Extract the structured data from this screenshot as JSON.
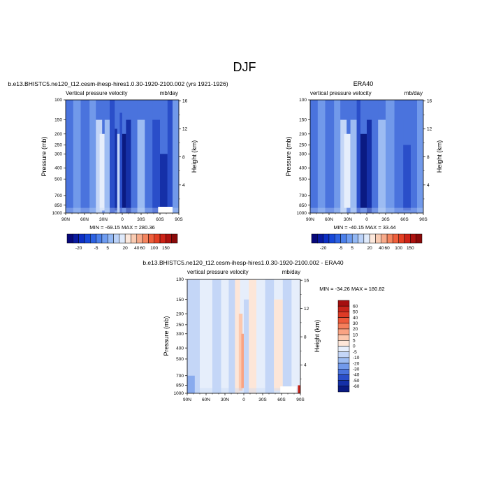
{
  "figure_title": "DJF",
  "chart_data": [
    {
      "type": "heatmap",
      "title": "b.e13.BHISTC5.ne120_t12.cesm-ihesp-hires1.0.30-1920-2100.002 (yrs 1921-1926)",
      "subtitle_left": "Vertical pressure velocity",
      "subtitle_right": "mb/day",
      "xlabel": "",
      "ylabel": "Pressure (mb)",
      "ylabel_right": "Height (km)",
      "x_ticks": [
        "90N",
        "60N",
        "30N",
        "0",
        "30S",
        "60S",
        "90S"
      ],
      "y_ticks": [
        "100",
        "150",
        "200",
        "250",
        "300",
        "400",
        "500",
        "700",
        "850",
        "1000"
      ],
      "y_right_ticks": [
        "16",
        "12",
        "8",
        "4"
      ],
      "stats": "MIN = -69.15   MAX = 280.36",
      "colorbar_labels": [
        "-20",
        "-5",
        "5",
        "20",
        "40",
        "60",
        "100",
        "150"
      ],
      "colorbar_levels": [
        -30,
        -25,
        -20,
        -15,
        -10,
        -5,
        0,
        5,
        10,
        15,
        20,
        30,
        40,
        50,
        60,
        80,
        100,
        120,
        150
      ],
      "colorbar_colors": [
        "#08087a",
        "#0a1aa0",
        "#0d2fc4",
        "#1748d8",
        "#2d62e2",
        "#4c80ea",
        "#6e9cf0",
        "#93b8f4",
        "#bbd2f8",
        "#dfeafb",
        "#fce8dc",
        "#f9cbb2",
        "#f7aa8a",
        "#f4855f",
        "#ee5f3c",
        "#e33f23",
        "#cd2317",
        "#ad120f",
        "#8a0a0a"
      ],
      "y_range_mb": [
        100,
        1000
      ],
      "x_range_deg": [
        90,
        -90
      ]
    },
    {
      "type": "heatmap",
      "title": "ERA40",
      "subtitle_left": "vertical pressure velocity",
      "subtitle_right": "mb/day",
      "xlabel": "",
      "ylabel": "Pressure (mb)",
      "ylabel_right": "Height (km)",
      "x_ticks": [
        "90N",
        "60N",
        "30N",
        "0",
        "30S",
        "60S",
        "90S"
      ],
      "y_ticks": [
        "100",
        "150",
        "200",
        "250",
        "300",
        "400",
        "500",
        "700",
        "850",
        "1000"
      ],
      "y_right_ticks": [
        "16",
        "12",
        "8",
        "4"
      ],
      "stats": "MIN = -40.15   MAX = 33.44",
      "colorbar_labels": [
        "-20",
        "-5",
        "5",
        "20",
        "40",
        "60",
        "100",
        "150"
      ],
      "y_range_mb": [
        100,
        1000
      ],
      "x_range_deg": [
        90,
        -90
      ]
    },
    {
      "type": "heatmap",
      "title": "b.e13.BHISTC5.ne120_t12.cesm-ihesp-hires1.0.30-1920-2100.002 - ERA40",
      "subtitle_left": "vertical pressure velocity",
      "subtitle_right": "mb/day",
      "xlabel": "",
      "ylabel": "Pressure (mb)",
      "ylabel_right": "Height (km)",
      "x_ticks": [
        "90N",
        "60N",
        "30N",
        "0",
        "30S",
        "60S",
        "90S"
      ],
      "y_ticks": [
        "100",
        "150",
        "200",
        "250",
        "300",
        "400",
        "500",
        "700",
        "850",
        "1000"
      ],
      "y_right_ticks": [
        "16",
        "12",
        "8",
        "4"
      ],
      "stats": "MIN = -34.26   MAX = 180.82",
      "colorbar_labels": [
        "60",
        "50",
        "40",
        "30",
        "20",
        "10",
        "5",
        "0",
        "-5",
        "-10",
        "-20",
        "-30",
        "-40",
        "-50",
        "-60"
      ],
      "colorbar_colors": [
        "#a50f0f",
        "#c8241a",
        "#de3b26",
        "#ee5a3b",
        "#f57f5c",
        "#f9a383",
        "#fcc8ae",
        "#fde6d8",
        "#e6eefb",
        "#c4d6f7",
        "#9dbcf2",
        "#7199ea",
        "#4a73dd",
        "#2a4ec9",
        "#1530a8",
        "#0a1a82"
      ],
      "y_range_mb": [
        100,
        1000
      ],
      "x_range_deg": [
        90,
        -90
      ]
    }
  ]
}
